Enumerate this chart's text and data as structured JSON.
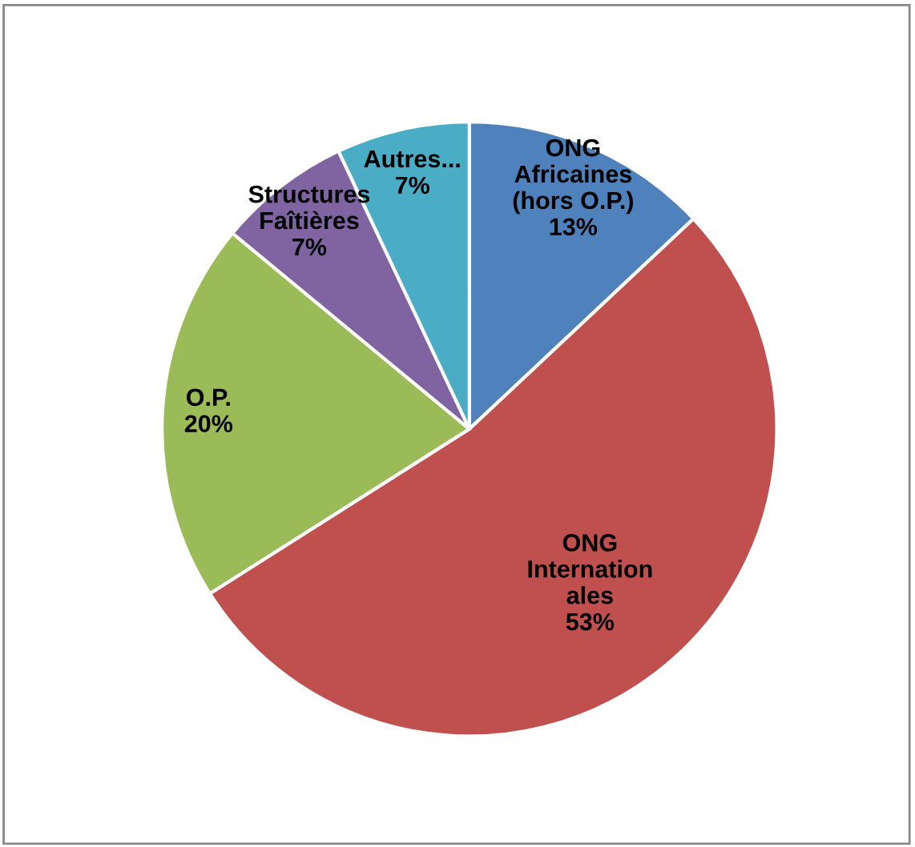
{
  "chart_data": {
    "type": "pie",
    "categories": [
      "ONG\nAfricaines\n(hors O.P.)",
      "ONG\nInternation\nales",
      "O.P.",
      "Structures\nFaîtières",
      "Autres..."
    ],
    "values": [
      13,
      53,
      20,
      7,
      7
    ],
    "value_labels": [
      "13%",
      "53%",
      "20%",
      "7%",
      "7%"
    ],
    "colors": [
      "#4f81bd",
      "#c0504d",
      "#9bbb59",
      "#8064a2",
      "#4bacc6"
    ],
    "legend": false
  }
}
